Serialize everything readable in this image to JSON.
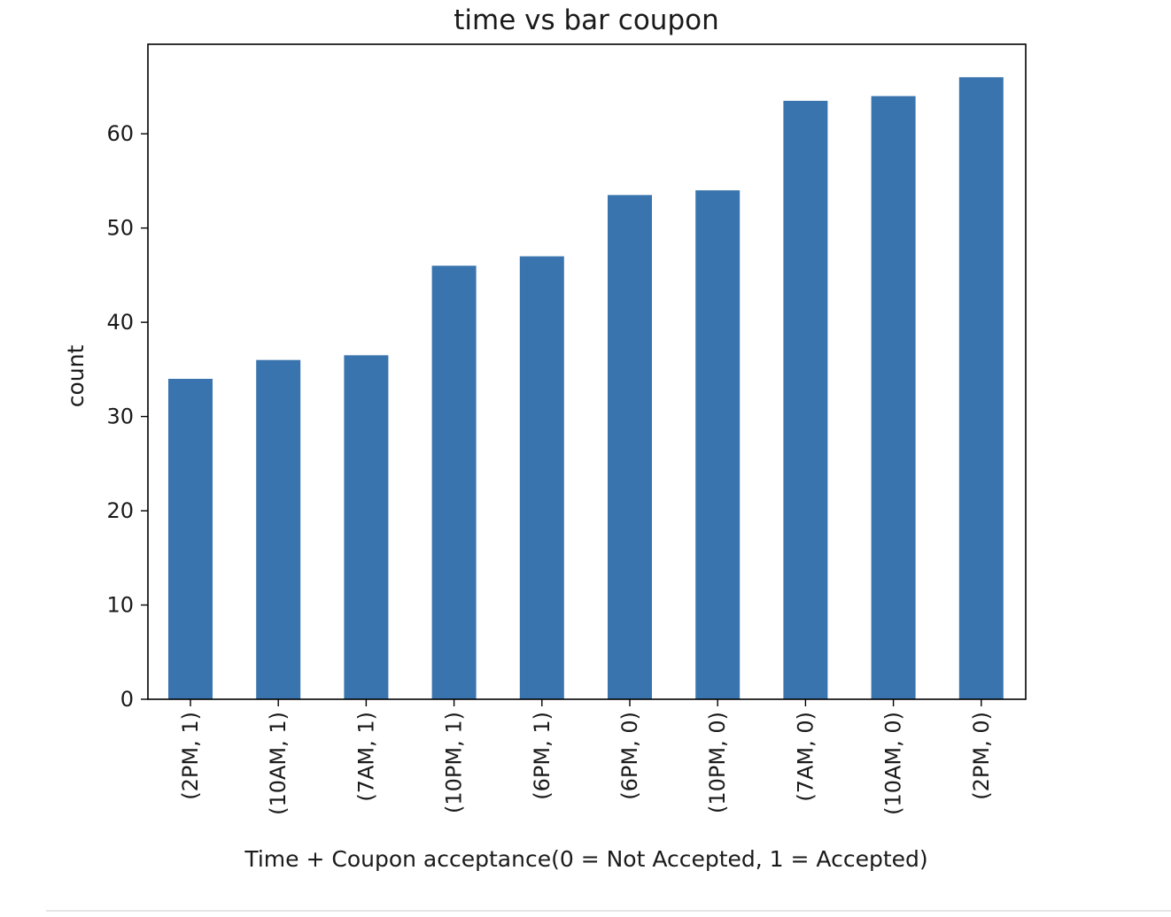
{
  "chart_data": {
    "type": "bar",
    "title": "time vs bar coupon",
    "xlabel": "Time + Coupon acceptance(0 = Not Accepted, 1 = Accepted)",
    "ylabel": "count",
    "categories": [
      "(2PM, 1)",
      "(10AM, 1)",
      "(7AM, 1)",
      "(10PM, 1)",
      "(6PM, 1)",
      "(6PM, 0)",
      "(10PM, 0)",
      "(7AM, 0)",
      "(10AM, 0)",
      "(2PM, 0)"
    ],
    "values": [
      34,
      36,
      36.5,
      46,
      47,
      53.5,
      54,
      63.5,
      64,
      66
    ],
    "ylim": [
      0,
      69.5
    ],
    "yticks": [
      0,
      10,
      20,
      30,
      40,
      50,
      60
    ],
    "bar_color": "#3a74ae",
    "grid": false,
    "legend": "none"
  }
}
